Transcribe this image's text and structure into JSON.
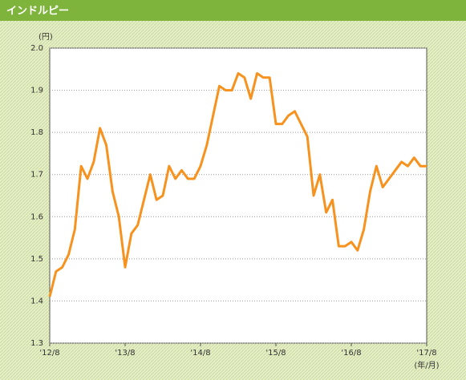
{
  "chart_data": {
    "type": "line",
    "title": "インドルピー",
    "y_unit": "(円)",
    "x_unit": "(年/月)",
    "categories": [
      "'12/8",
      null,
      null,
      null,
      null,
      null,
      null,
      null,
      null,
      null,
      null,
      null,
      "'13/8",
      null,
      null,
      null,
      null,
      null,
      null,
      null,
      null,
      null,
      null,
      null,
      "'14/8",
      null,
      null,
      null,
      null,
      null,
      null,
      null,
      null,
      null,
      null,
      null,
      "'15/8",
      null,
      null,
      null,
      null,
      null,
      null,
      null,
      null,
      null,
      null,
      null,
      "'16/8",
      null,
      null,
      null,
      null,
      null,
      null,
      null,
      null,
      null,
      null,
      null,
      "'17/8"
    ],
    "values": [
      1.41,
      1.47,
      1.48,
      1.51,
      1.57,
      1.72,
      1.69,
      1.73,
      1.81,
      1.77,
      1.66,
      1.6,
      1.48,
      1.56,
      1.58,
      1.64,
      1.7,
      1.64,
      1.65,
      1.72,
      1.69,
      1.71,
      1.69,
      1.69,
      1.72,
      1.77,
      1.84,
      1.91,
      1.9,
      1.9,
      1.94,
      1.93,
      1.88,
      1.94,
      1.93,
      1.93,
      1.82,
      1.82,
      1.84,
      1.85,
      1.82,
      1.79,
      1.65,
      1.7,
      1.61,
      1.64,
      1.53,
      1.53,
      1.54,
      1.52,
      1.57,
      1.66,
      1.72,
      1.67,
      1.69,
      1.71,
      1.73,
      1.72,
      1.74,
      1.72,
      1.72
    ],
    "color": "#f7921e",
    "ylim": [
      1.3,
      2.0
    ],
    "yticks": [
      1.3,
      1.4,
      1.5,
      1.6,
      1.7,
      1.8,
      1.9,
      {
        "value": 2.0,
        "label": "2.0"
      }
    ],
    "grid": true
  }
}
